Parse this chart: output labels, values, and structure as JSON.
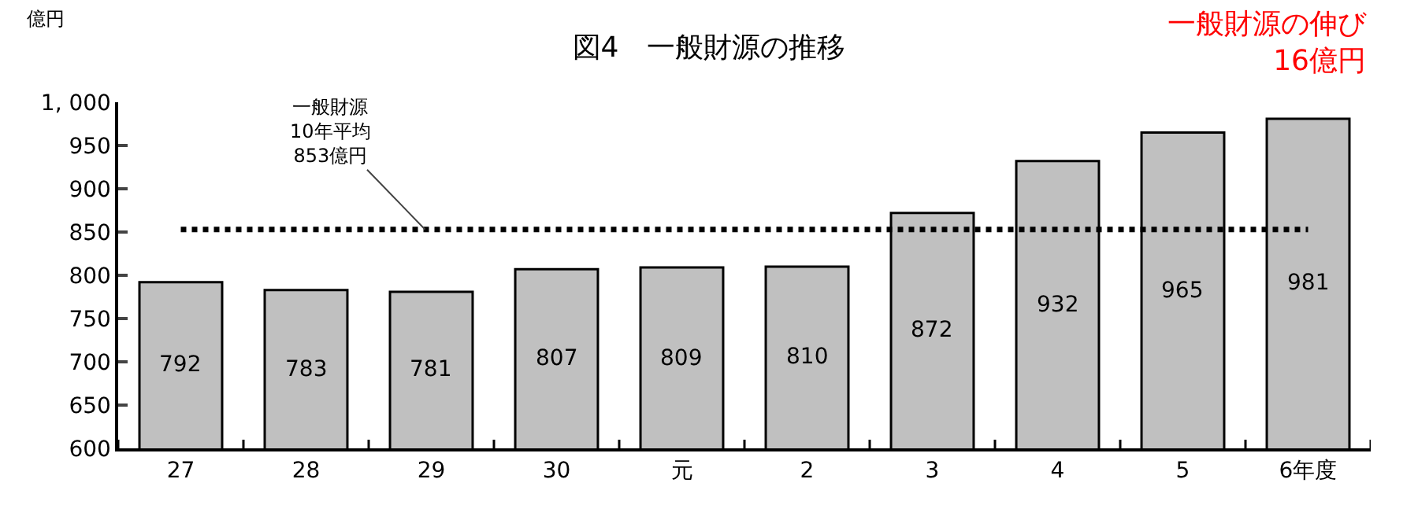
{
  "chart_data": {
    "type": "bar",
    "title": "図4　一般財源の推移",
    "ylabel": "億円",
    "categories": [
      "27",
      "28",
      "29",
      "30",
      "元",
      "2",
      "3",
      "4",
      "5",
      "6年度"
    ],
    "values": [
      792,
      783,
      781,
      807,
      809,
      810,
      872,
      932,
      965,
      981
    ],
    "color": "#c0c0c0",
    "data_labels": true,
    "grid": false,
    "ylim": [
      600,
      1000
    ],
    "yticks": [
      600,
      650,
      700,
      750,
      800,
      850,
      900,
      950,
      {
        "value": 1000,
        "label": "1, 000"
      }
    ],
    "ref_lines": [
      {
        "axis": "y",
        "value": 853,
        "label": "一般財源\n10年平均\n853億円",
        "color": "#000000",
        "line_style": "dotted"
      }
    ],
    "annotations": [
      "一般財源の伸び\n16億円"
    ]
  }
}
